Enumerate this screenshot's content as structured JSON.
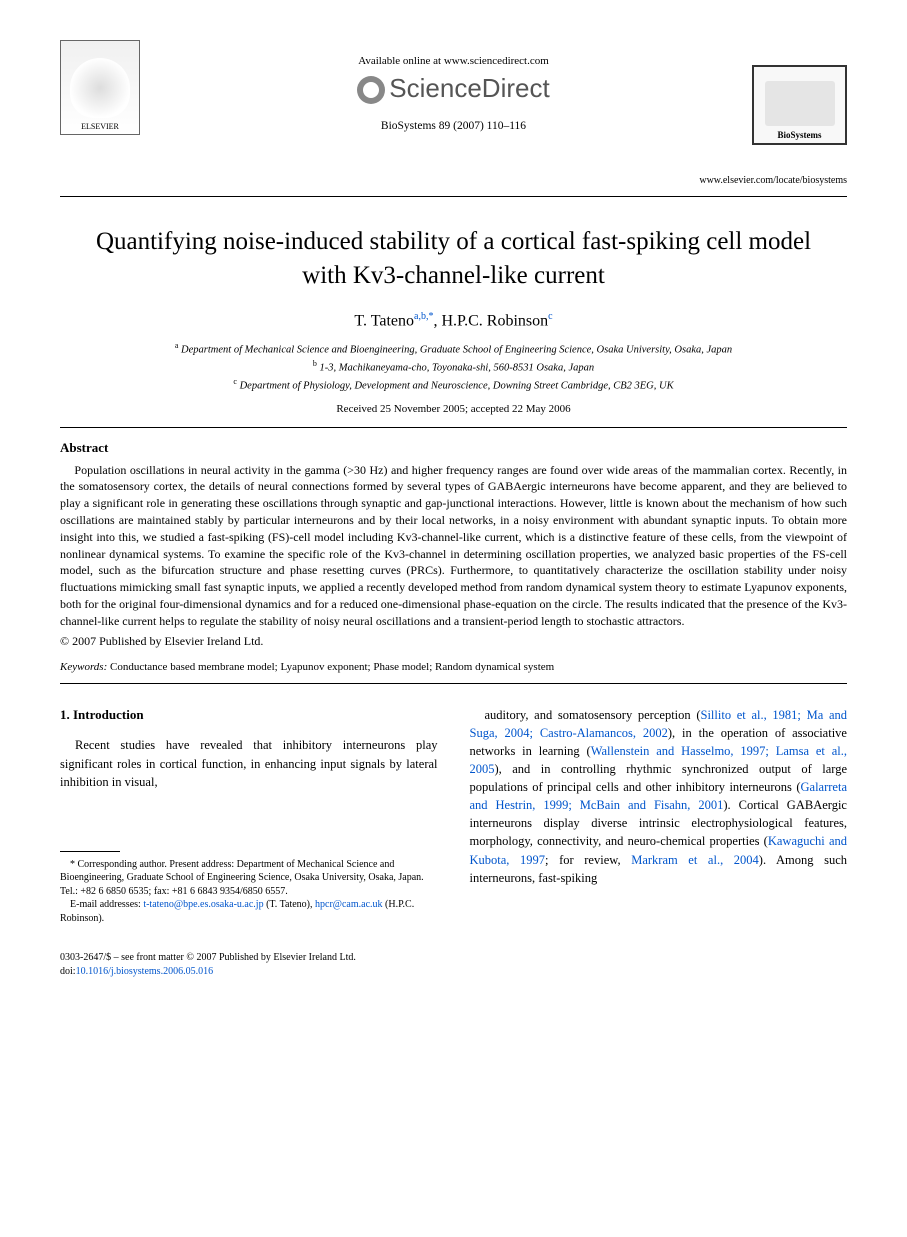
{
  "header": {
    "available_online": "Available online at www.sciencedirect.com",
    "brand_name": "ScienceDirect",
    "elsevier_label": "ELSEVIER",
    "biosystems_label": "BioSystems",
    "citation": "BioSystems 89 (2007) 110–116",
    "journal_url": "www.elsevier.com/locate/biosystems"
  },
  "title": "Quantifying noise-induced stability of a cortical fast-spiking cell model with Kv3-channel-like current",
  "authors": {
    "a1_name": "T. Tateno",
    "a1_marks": "a,b,*",
    "a2_name": "H.P.C. Robinson",
    "a2_marks": "c"
  },
  "affiliations": {
    "a": "Department of Mechanical Science and Bioengineering, Graduate School of Engineering Science, Osaka University, Osaka, Japan",
    "b": "1-3, Machikaneyama-cho, Toyonaka-shi, 560-8531 Osaka, Japan",
    "c": "Department of Physiology, Development and Neuroscience, Downing Street Cambridge, CB2 3EG, UK"
  },
  "dates": "Received 25 November 2005; accepted 22 May 2006",
  "abstract": {
    "heading": "Abstract",
    "body": "Population oscillations in neural activity in the gamma (>30 Hz) and higher frequency ranges are found over wide areas of the mammalian cortex. Recently, in the somatosensory cortex, the details of neural connections formed by several types of GABAergic interneurons have become apparent, and they are believed to play a significant role in generating these oscillations through synaptic and gap-junctional interactions. However, little is known about the mechanism of how such oscillations are maintained stably by particular interneurons and by their local networks, in a noisy environment with abundant synaptic inputs. To obtain more insight into this, we studied a fast-spiking (FS)-cell model including Kv3-channel-like current, which is a distinctive feature of these cells, from the viewpoint of nonlinear dynamical systems. To examine the specific role of the Kv3-channel in determining oscillation properties, we analyzed basic properties of the FS-cell model, such as the bifurcation structure and phase resetting curves (PRCs). Furthermore, to quantitatively characterize the oscillation stability under noisy fluctuations mimicking small fast synaptic inputs, we applied a recently developed method from random dynamical system theory to estimate Lyapunov exponents, both for the original four-dimensional dynamics and for a reduced one-dimensional phase-equation on the circle. The results indicated that the presence of the Kv3-channel-like current helps to regulate the stability of noisy neural oscillations and a transient-period length to stochastic attractors.",
    "copyright": "© 2007 Published by Elsevier Ireland Ltd."
  },
  "keywords": {
    "label": "Keywords:",
    "text": "Conductance based membrane model; Lyapunov exponent; Phase model; Random dynamical system"
  },
  "intro": {
    "heading": "1. Introduction",
    "left_para": "Recent studies have revealed that inhibitory interneurons play significant roles in cortical function, in enhancing input signals by lateral inhibition in visual,",
    "right_para_1": "auditory, and somatosensory perception (",
    "right_cite_1": "Sillito et al., 1981; Ma and Suga, 2004; Castro-Alamancos, 2002",
    "right_para_2": "), in the operation of associative networks in learning (",
    "right_cite_2": "Wallenstein and Hasselmo, 1997; Lamsa et al., 2005",
    "right_para_3": "), and in controlling rhythmic synchronized output of large populations of principal cells and other inhibitory interneurons (",
    "right_cite_3": "Galarreta and Hestrin, 1999; McBain and Fisahn, 2001",
    "right_para_4": "). Cortical GABAergic interneurons display diverse intrinsic electrophysiological features, morphology, connectivity, and neuro-chemical properties (",
    "right_cite_4": "Kawaguchi and Kubota, 1997",
    "right_para_5": "; for review, ",
    "right_cite_5": "Markram et al., 2004",
    "right_para_6": "). Among such interneurons, fast-spiking"
  },
  "footnote": {
    "corr_label": "* Corresponding author. Present address: Department of Mechanical Science and Bioengineering, Graduate School of Engineering Science, Osaka University, Osaka, Japan. Tel.: +82 6 6850 6535; fax: +81 6 6843 9354/6850 6557.",
    "email_label": "E-mail addresses:",
    "email1": "t-tateno@bpe.es.osaka-u.ac.jp",
    "email1_who": "(T. Tateno),",
    "email2": "hpcr@cam.ac.uk",
    "email2_who": "(H.P.C. Robinson)."
  },
  "bottom": {
    "line1": "0303-2647/$ – see front matter © 2007 Published by Elsevier Ireland Ltd.",
    "doi_label": "doi:",
    "doi": "10.1016/j.biosystems.2006.05.016"
  },
  "colors": {
    "link": "#0055cc",
    "text": "#000000",
    "background": "#ffffff"
  }
}
